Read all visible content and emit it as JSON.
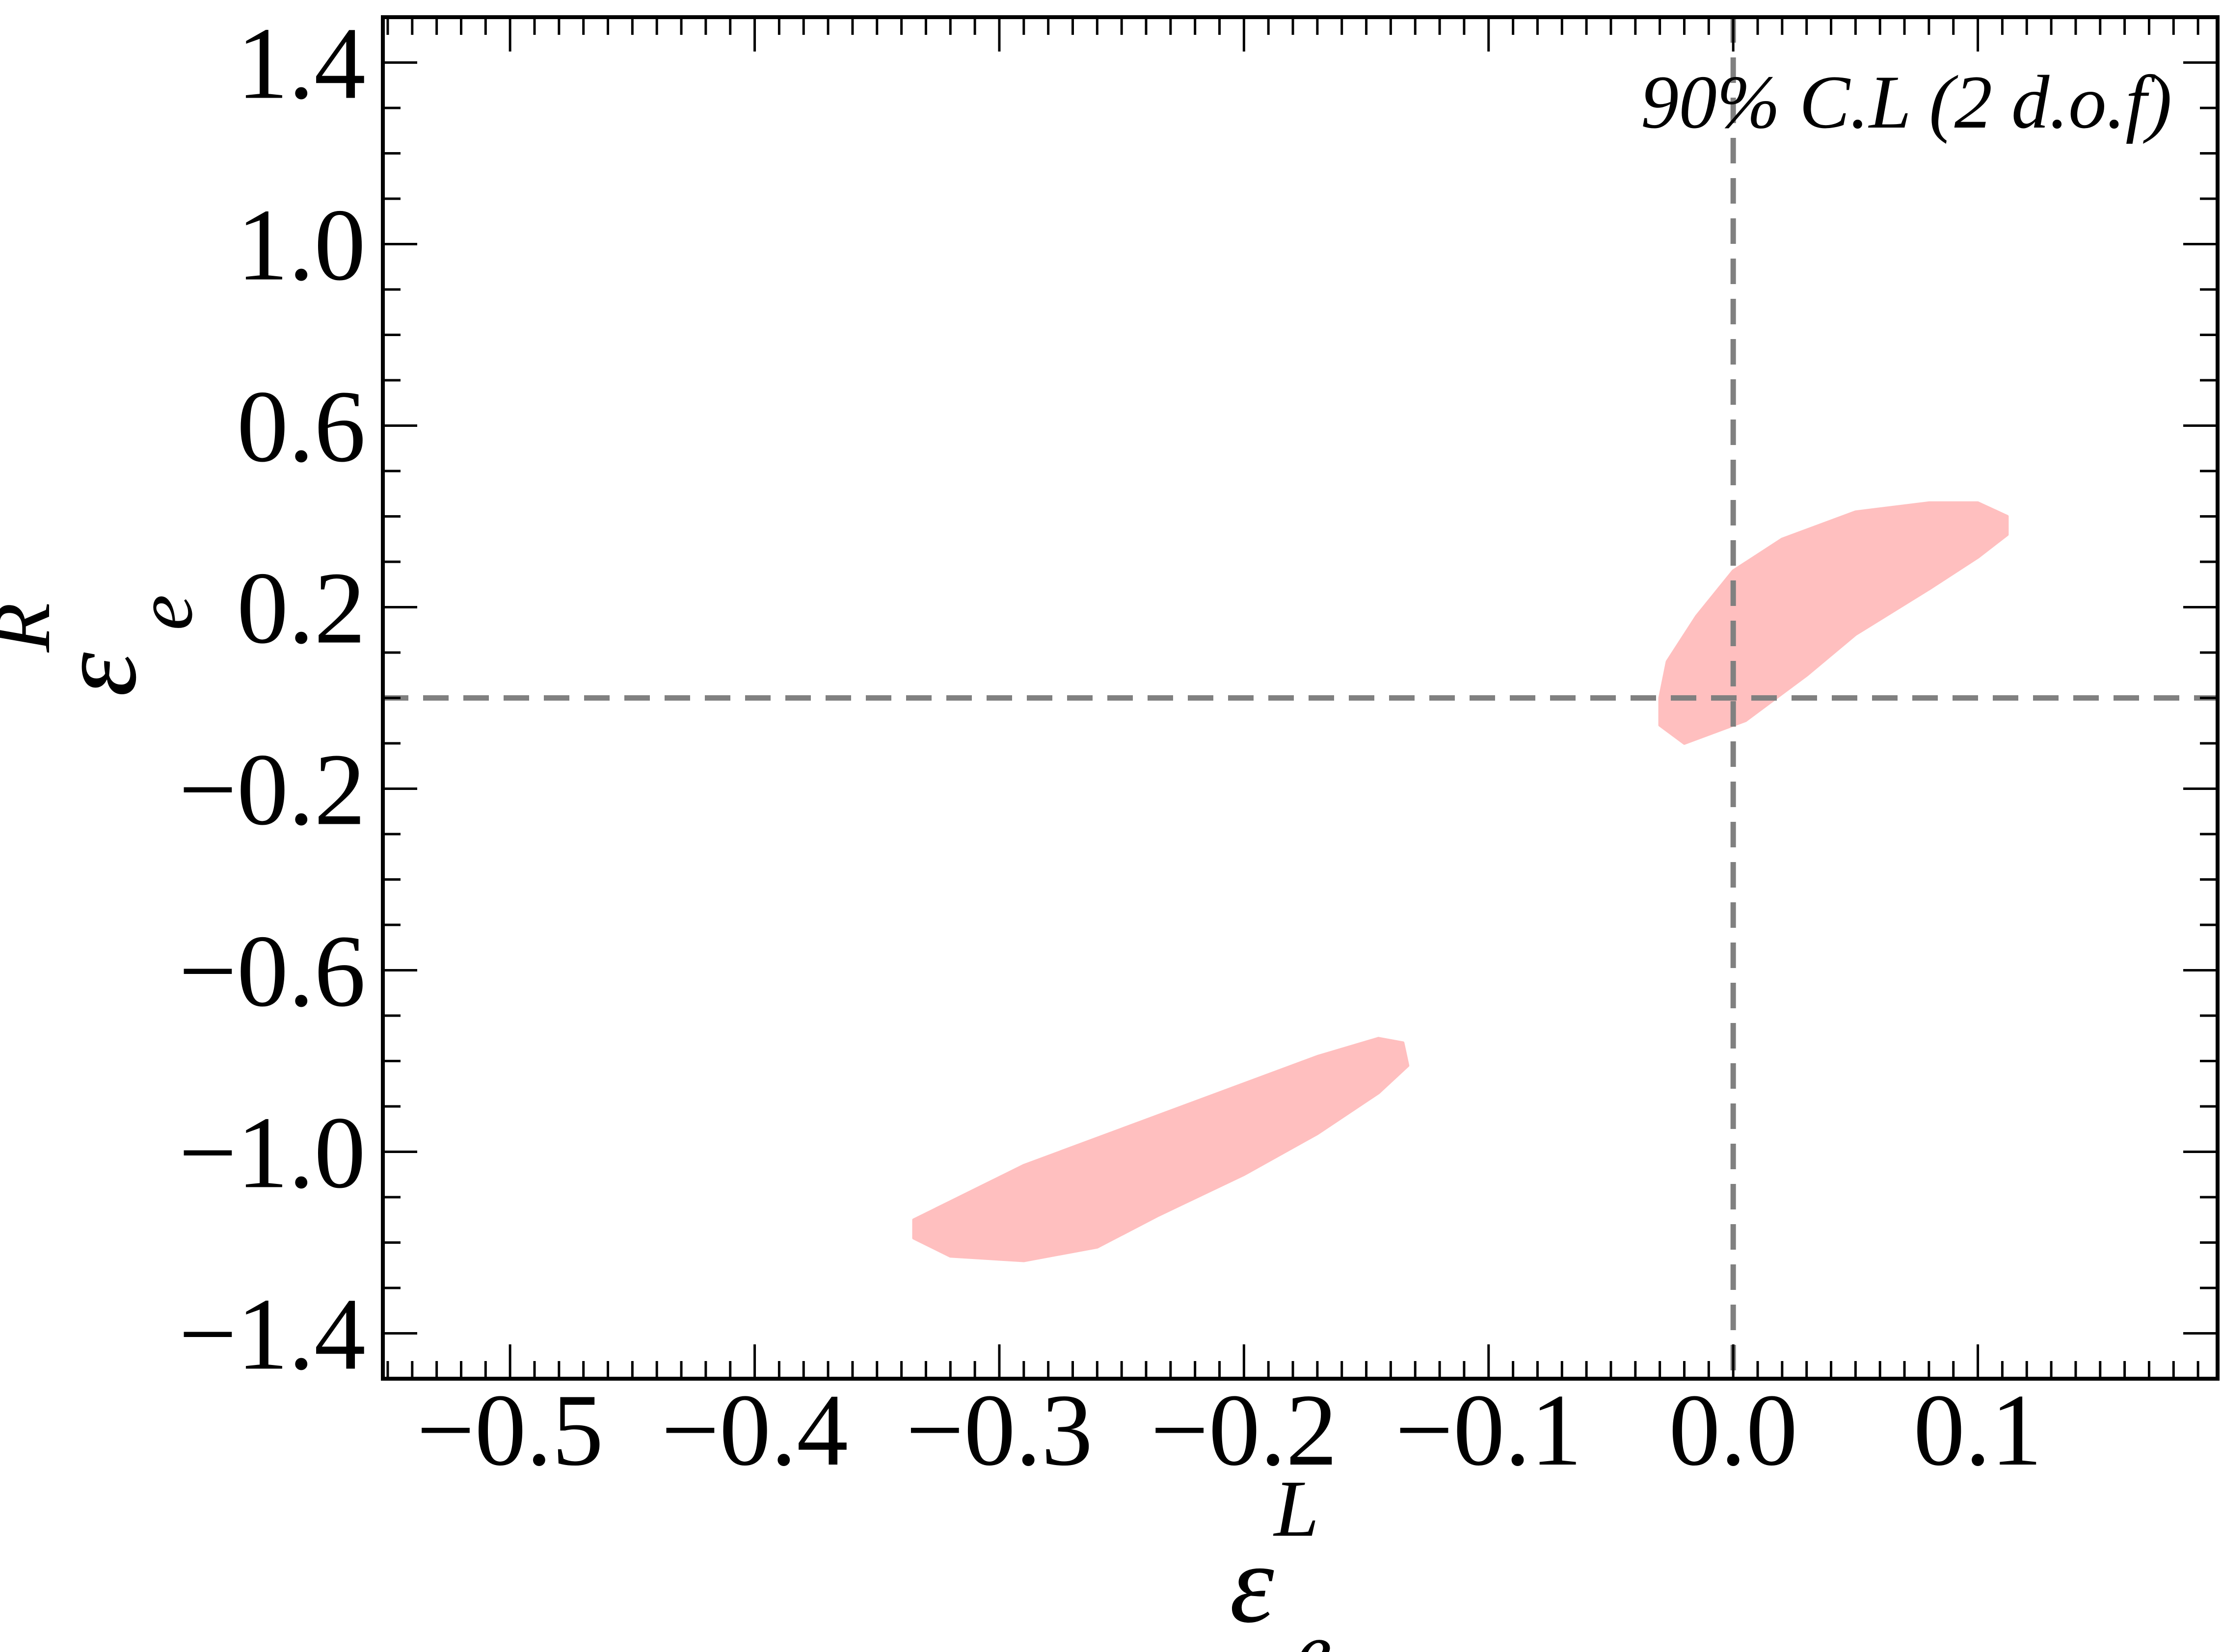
{
  "chart_data": {
    "type": "area",
    "title": "",
    "annotation": "90% C.L (2 d.o.f)",
    "xlabel": {
      "symbol": "ε",
      "sub": "e",
      "sup": "L"
    },
    "ylabel": {
      "symbol": "ε",
      "sub": "e",
      "sup": "R"
    },
    "xlim": [
      -0.552,
      0.198
    ],
    "ylim": [
      -1.5,
      1.5
    ],
    "x_ticks": [
      -0.5,
      -0.4,
      -0.3,
      -0.2,
      -0.1,
      0.0,
      0.1
    ],
    "x_tick_labels": [
      "−0.5",
      "−0.4",
      "−0.3",
      "−0.2",
      "−0.1",
      "0.0",
      "0.1"
    ],
    "y_ticks": [
      1.4,
      1.0,
      0.6,
      0.2,
      -0.2,
      -0.6,
      -1.0,
      -1.4
    ],
    "y_tick_labels": [
      "1.4",
      "1.0",
      "0.6",
      "0.2",
      "−0.2",
      "−0.6",
      "−1.0",
      "−1.4"
    ],
    "reference_lines": [
      {
        "orientation": "vertical",
        "value": 0.0,
        "style": "dashed",
        "color": "#808080"
      },
      {
        "orientation": "horizontal",
        "value": 0.0,
        "style": "dashed",
        "color": "#808080"
      }
    ],
    "regions": [
      {
        "color": "#ffbfbf",
        "points": [
          [
            -0.027,
            0.08
          ],
          [
            -0.015,
            0.18
          ],
          [
            0.0,
            0.28
          ],
          [
            0.02,
            0.35
          ],
          [
            0.05,
            0.41
          ],
          [
            0.08,
            0.43
          ],
          [
            0.1,
            0.43
          ],
          [
            0.112,
            0.4
          ],
          [
            0.112,
            0.36
          ],
          [
            0.1,
            0.31
          ],
          [
            0.08,
            0.24
          ],
          [
            0.05,
            0.14
          ],
          [
            0.03,
            0.05
          ],
          [
            0.005,
            -0.05
          ],
          [
            -0.02,
            -0.1
          ],
          [
            -0.03,
            -0.06
          ],
          [
            -0.03,
            0.0
          ]
        ]
      },
      {
        "color": "#ffbfbf",
        "points": [
          [
            -0.335,
            -1.15
          ],
          [
            -0.32,
            -1.11
          ],
          [
            -0.29,
            -1.03
          ],
          [
            -0.25,
            -0.95
          ],
          [
            -0.21,
            -0.87
          ],
          [
            -0.17,
            -0.79
          ],
          [
            -0.145,
            -0.75
          ],
          [
            -0.135,
            -0.76
          ],
          [
            -0.133,
            -0.81
          ],
          [
            -0.145,
            -0.87
          ],
          [
            -0.17,
            -0.96
          ],
          [
            -0.2,
            -1.05
          ],
          [
            -0.235,
            -1.14
          ],
          [
            -0.26,
            -1.21
          ],
          [
            -0.29,
            -1.24
          ],
          [
            -0.32,
            -1.23
          ],
          [
            -0.335,
            -1.19
          ]
        ]
      }
    ],
    "grid": false
  }
}
